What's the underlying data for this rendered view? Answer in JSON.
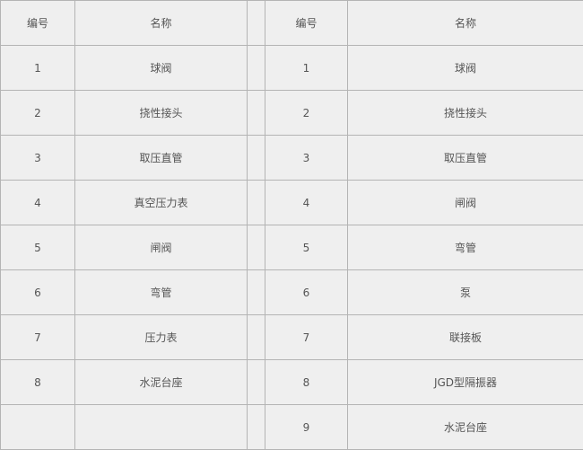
{
  "headers": [
    "编号",
    "名称",
    "",
    "编号",
    "名称"
  ],
  "left_rows": [
    {
      "no": "1",
      "name": "球阀"
    },
    {
      "no": "2",
      "name": "挠性接头"
    },
    {
      "no": "3",
      "name": "取压直管"
    },
    {
      "no": "4",
      "name": "真空压力表"
    },
    {
      "no": "5",
      "name": "闸阀"
    },
    {
      "no": "6",
      "name": "弯管"
    },
    {
      "no": "7",
      "name": "压力表"
    },
    {
      "no": "8",
      "name": "水泥台座"
    },
    {
      "no": "",
      "name": ""
    }
  ],
  "right_rows": [
    {
      "no": "1",
      "name": "球阀"
    },
    {
      "no": "2",
      "name": "挠性接头"
    },
    {
      "no": "3",
      "name": "取压直管"
    },
    {
      "no": "4",
      "name": "闸阀"
    },
    {
      "no": "5",
      "name": "弯管"
    },
    {
      "no": "6",
      "name": "泵"
    },
    {
      "no": "7",
      "name": "联接板"
    },
    {
      "no": "8",
      "name": "JGD型隔振器"
    },
    {
      "no": "9",
      "name": "水泥台座"
    }
  ]
}
